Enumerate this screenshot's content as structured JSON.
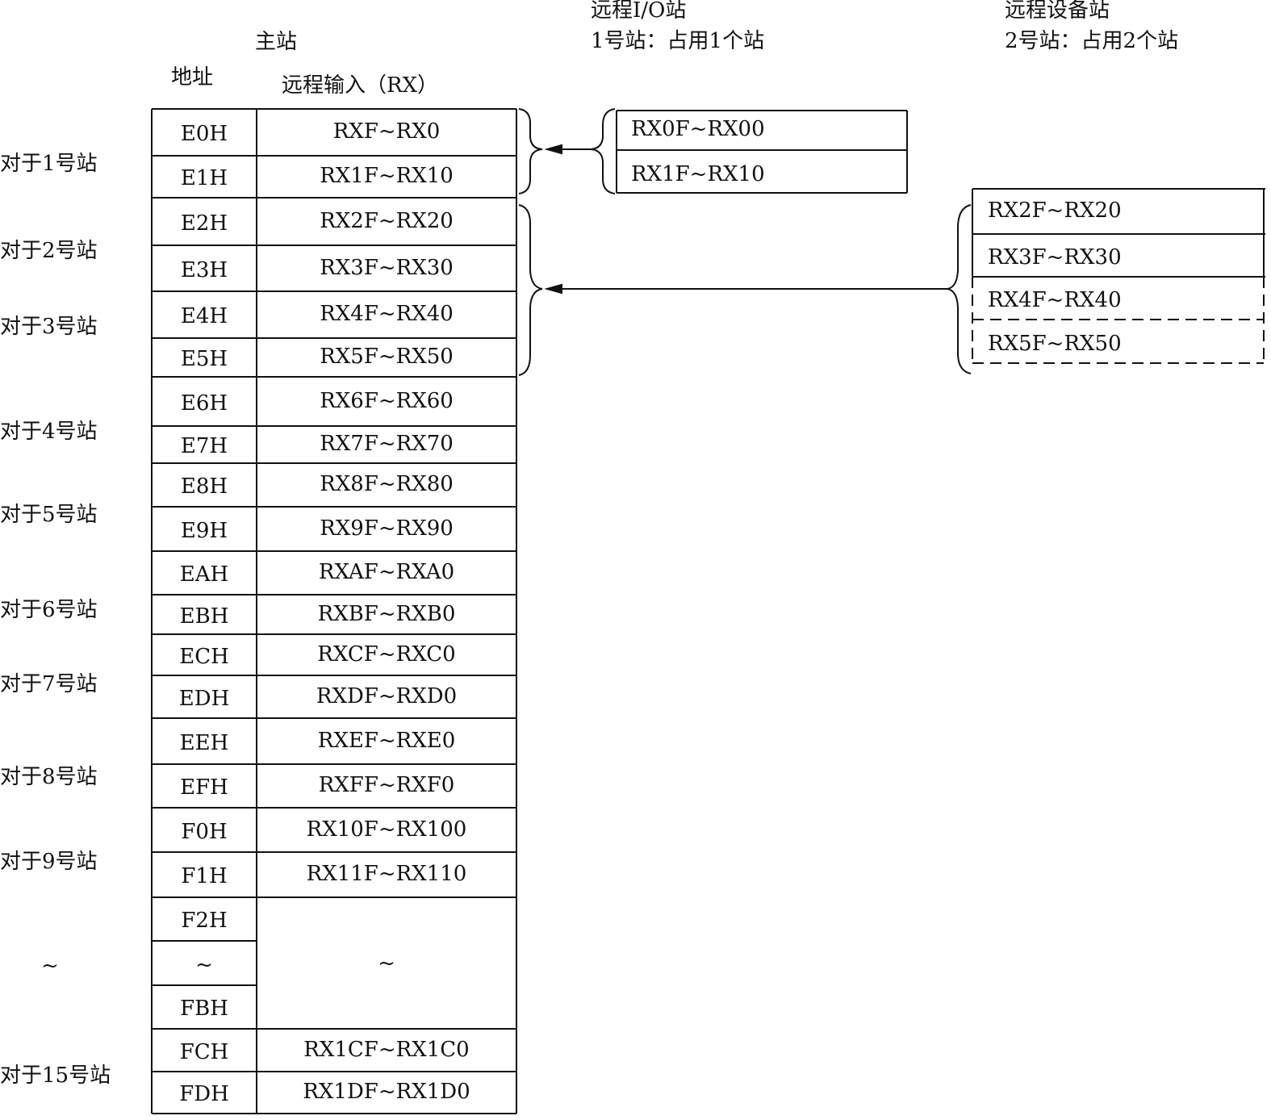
{
  "master": {
    "title": "主站",
    "address_header": "地址",
    "input_header": "远程输入（RX）",
    "rows": [
      {
        "addr": "E0H",
        "range": "RXF~RX0"
      },
      {
        "addr": "E1H",
        "range": "RX1F~RX10"
      },
      {
        "addr": "E2H",
        "range": "RX2F~RX20"
      },
      {
        "addr": "E3H",
        "range": "RX3F~RX30"
      },
      {
        "addr": "E4H",
        "range": "RX4F~RX40"
      },
      {
        "addr": "E5H",
        "range": "RX5F~RX50"
      },
      {
        "addr": "E6H",
        "range": "RX6F~RX60"
      },
      {
        "addr": "E7H",
        "range": "RX7F~RX70"
      },
      {
        "addr": "E8H",
        "range": "RX8F~RX80"
      },
      {
        "addr": "E9H",
        "range": "RX9F~RX90"
      },
      {
        "addr": "EAH",
        "range": "RXAF~RXA0"
      },
      {
        "addr": "EBH",
        "range": "RXBF~RXB0"
      },
      {
        "addr": "ECH",
        "range": "RXCF~RXC0"
      },
      {
        "addr": "EDH",
        "range": "RXDF~RXD0"
      },
      {
        "addr": "EEH",
        "range": "RXEF~RXE0"
      },
      {
        "addr": "EFH",
        "range": "RXFF~RXF0"
      },
      {
        "addr": "F0H",
        "range": "RX10F~RX100"
      },
      {
        "addr": "F1H",
        "range": "RX11F~RX110"
      },
      {
        "addr": "F2H",
        "range": ""
      },
      {
        "addr": "~",
        "range": ""
      },
      {
        "addr": "FBH",
        "range": ""
      },
      {
        "addr": "FCH",
        "range": "RX1CF~RX1C0"
      },
      {
        "addr": "FDH",
        "range": "RX1DF~RX1D0"
      }
    ],
    "merged_range_label": "~"
  },
  "station_labels": [
    "对于1号站",
    "对于2号站",
    "对于3号站",
    "对于4号站",
    "对于5号站",
    "对于6号站",
    "对于7号站",
    "对于8号站",
    "对于9号站",
    "~",
    "对于15号站"
  ],
  "remote_io": {
    "title": "远程I/O站",
    "subtitle": "1号站：占用1个站",
    "rows": [
      "RX0F~RX00",
      "RX1F~RX10"
    ]
  },
  "remote_device": {
    "title": "远程设备站",
    "subtitle": "2号站：占用2个站",
    "rows": [
      "RX2F~RX20",
      "RX3F~RX30",
      "RX4F~RX40",
      "RX5F~RX50"
    ]
  }
}
